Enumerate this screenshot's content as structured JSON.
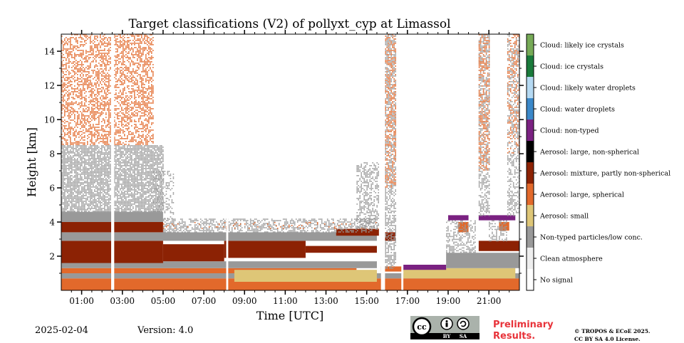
{
  "chart_data": {
    "type": "heatmap",
    "title": "Target classifications (V2) of pollyxt_cyp at Limassol",
    "xlabel": "Time [UTC]",
    "ylabel": "Height [km]",
    "xlim_hours": [
      0.0,
      22.5
    ],
    "ylim_km": [
      0.0,
      15.0
    ],
    "x_ticks": [
      {
        "hour": 1,
        "label": "01:00"
      },
      {
        "hour": 3,
        "label": "03:00"
      },
      {
        "hour": 5,
        "label": "05:00"
      },
      {
        "hour": 7,
        "label": "07:00"
      },
      {
        "hour": 9,
        "label": "09:00"
      },
      {
        "hour": 11,
        "label": "11:00"
      },
      {
        "hour": 13,
        "label": "13:00"
      },
      {
        "hour": 15,
        "label": "15:00"
      },
      {
        "hour": 17,
        "label": "17:00"
      },
      {
        "hour": 19,
        "label": "19:00"
      },
      {
        "hour": 21,
        "label": "21:00"
      }
    ],
    "y_ticks": [
      {
        "km": 2,
        "label": "2"
      },
      {
        "km": 4,
        "label": "4"
      },
      {
        "km": 6,
        "label": "6"
      },
      {
        "km": 8,
        "label": "8"
      },
      {
        "km": 10,
        "label": "10"
      },
      {
        "km": 12,
        "label": "12"
      },
      {
        "km": 14,
        "label": "14"
      }
    ],
    "classes": [
      {
        "label": "Cloud: likely ice crystals",
        "color": "#76aa57"
      },
      {
        "label": "Cloud: ice crystals",
        "color": "#1a7a3b"
      },
      {
        "label": "Cloud: likely water droplets",
        "color": "#b5d9f2"
      },
      {
        "label": "Cloud: water droplets",
        "color": "#3b88c9"
      },
      {
        "label": "Cloud: non-typed",
        "color": "#7a2181"
      },
      {
        "label": "Aerosol: large, non-spherical",
        "color": "#000000"
      },
      {
        "label": "Aerosol: mixture, partly non-spherical",
        "color": "#8c2204"
      },
      {
        "label": "Aerosol: large, spherical",
        "color": "#e2692b"
      },
      {
        "label": "Aerosol: small",
        "color": "#dec677"
      },
      {
        "label": "Non-typed particles/low conc.",
        "color": "#999999"
      },
      {
        "label": "Clean atmosphere",
        "color": "#eeeeee"
      },
      {
        "label": "No signal",
        "color": "#ffffff"
      }
    ],
    "regions": [
      {
        "cls": 7,
        "x0": 0.0,
        "x1": 22.5,
        "y0": 0.0,
        "y1": 0.7
      },
      {
        "cls": 9,
        "x0": 0.0,
        "x1": 22.5,
        "y0": 0.7,
        "y1": 1.0
      },
      {
        "cls": 7,
        "x0": 0.0,
        "x1": 14.5,
        "y0": 1.0,
        "y1": 1.3
      },
      {
        "cls": 8,
        "x0": 8.5,
        "x1": 15.5,
        "y0": 0.5,
        "y1": 1.2
      },
      {
        "cls": 8,
        "x0": 16.8,
        "x1": 22.3,
        "y0": 0.7,
        "y1": 1.3
      },
      {
        "cls": 9,
        "x0": 0.0,
        "x1": 15.5,
        "y0": 1.3,
        "y1": 1.7
      },
      {
        "cls": 6,
        "x0": 0.0,
        "x1": 5.0,
        "y0": 1.6,
        "y1": 2.9
      },
      {
        "cls": 6,
        "x0": 5.0,
        "x1": 8.0,
        "y0": 1.7,
        "y1": 2.7
      },
      {
        "cls": 6,
        "x0": 8.0,
        "x1": 12.0,
        "y0": 1.9,
        "y1": 2.9
      },
      {
        "cls": 6,
        "x0": 12.0,
        "x1": 15.5,
        "y0": 2.2,
        "y1": 2.6
      },
      {
        "cls": 9,
        "x0": 0.0,
        "x1": 15.5,
        "y0": 2.9,
        "y1": 3.4
      },
      {
        "cls": 6,
        "x0": 0.0,
        "x1": 5.0,
        "y0": 3.4,
        "y1": 4.0
      },
      {
        "cls": 6,
        "x0": 13.5,
        "x1": 15.6,
        "y0": 3.2,
        "y1": 3.6
      },
      {
        "cls": 9,
        "x0": 0.0,
        "x1": 5.0,
        "y0": 4.0,
        "y1": 4.6
      },
      {
        "cls": 6,
        "x0": 15.9,
        "x1": 16.4,
        "y0": 2.9,
        "y1": 3.4
      },
      {
        "cls": 7,
        "x0": 15.7,
        "x1": 16.8,
        "y0": 1.1,
        "y1": 1.4
      },
      {
        "cls": 4,
        "x0": 16.8,
        "x1": 18.9,
        "y0": 1.2,
        "y1": 1.5
      },
      {
        "cls": 9,
        "x0": 18.9,
        "x1": 22.5,
        "y0": 1.3,
        "y1": 2.2
      },
      {
        "cls": 6,
        "x0": 20.5,
        "x1": 22.5,
        "y0": 2.3,
        "y1": 2.9
      },
      {
        "cls": 4,
        "x0": 19.0,
        "x1": 20.0,
        "y0": 4.1,
        "y1": 4.4
      },
      {
        "cls": 4,
        "x0": 20.5,
        "x1": 22.3,
        "y0": 4.1,
        "y1": 4.4
      },
      {
        "cls": 7,
        "x0": 19.5,
        "x1": 20.0,
        "y0": 3.4,
        "y1": 4.0
      },
      {
        "cls": 7,
        "x0": 21.5,
        "x1": 22.0,
        "y0": 3.5,
        "y1": 4.0
      }
    ],
    "speckle_fields": [
      {
        "x0": 0.0,
        "x1": 5.0,
        "y0": 4.6,
        "y1": 8.5,
        "cls": 9,
        "density": 0.8
      },
      {
        "x0": 0.0,
        "x1": 4.5,
        "y0": 8.5,
        "y1": 15.0,
        "cls": 7,
        "density": 0.5
      },
      {
        "x0": 4.5,
        "x1": 5.5,
        "y0": 4.2,
        "y1": 7.0,
        "cls": 9,
        "density": 0.3
      },
      {
        "x0": 5.0,
        "x1": 15.5,
        "y0": 3.4,
        "y1": 4.2,
        "cls": 9,
        "density": 0.5
      },
      {
        "x0": 5.0,
        "x1": 15.5,
        "y0": 3.6,
        "y1": 4.0,
        "cls": 7,
        "density": 0.1
      },
      {
        "x0": 14.5,
        "x1": 15.6,
        "y0": 3.6,
        "y1": 7.5,
        "cls": 9,
        "density": 0.5
      },
      {
        "x0": 15.9,
        "x1": 16.4,
        "y0": 1.3,
        "y1": 15.0,
        "cls": 9,
        "density": 0.6
      },
      {
        "x0": 15.9,
        "x1": 16.4,
        "y0": 6.0,
        "y1": 15.0,
        "cls": 7,
        "density": 0.4
      },
      {
        "x0": 20.5,
        "x1": 21.0,
        "y0": 4.4,
        "y1": 15.0,
        "cls": 9,
        "density": 0.5
      },
      {
        "x0": 20.5,
        "x1": 21.0,
        "y0": 7.0,
        "y1": 15.0,
        "cls": 7,
        "density": 0.4
      },
      {
        "x0": 21.9,
        "x1": 22.5,
        "y0": 4.4,
        "y1": 15.0,
        "cls": 9,
        "density": 0.4
      },
      {
        "x0": 21.9,
        "x1": 22.5,
        "y0": 8.0,
        "y1": 15.0,
        "cls": 7,
        "density": 0.3
      },
      {
        "x0": 18.9,
        "x1": 20.3,
        "y0": 2.2,
        "y1": 4.1,
        "cls": 9,
        "density": 0.5
      },
      {
        "x0": 21.0,
        "x1": 21.9,
        "y0": 2.9,
        "y1": 4.1,
        "cls": 9,
        "density": 0.5
      }
    ],
    "no_signal_gaps": [
      {
        "x0": 2.45,
        "x1": 2.6
      },
      {
        "x0": 8.1,
        "x1": 8.2
      },
      {
        "x0": 15.7,
        "x1": 15.9
      },
      {
        "x0": 16.7,
        "x1": 16.8
      }
    ]
  },
  "footer": {
    "date": "2025-02-04",
    "version": "Version: 4.0",
    "preliminary_line1": "Preliminary",
    "preliminary_line2": "Results.",
    "license_line1": "© TROPOS & ECoE 2025.",
    "license_line2": "CC BY SA 4.0 License."
  },
  "cc_badge": {
    "text": "cc",
    "by": "BY",
    "sa": "SA"
  }
}
